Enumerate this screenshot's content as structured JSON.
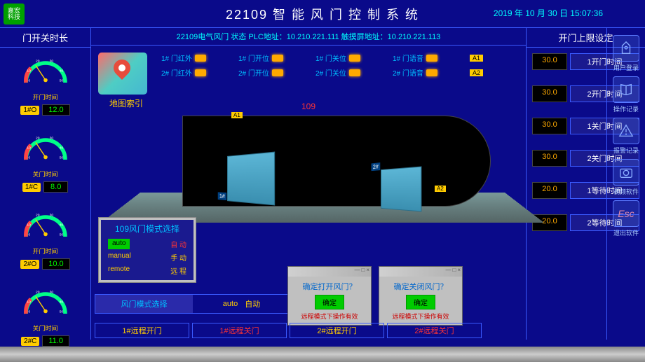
{
  "header": {
    "logo_top": "嘉宏",
    "logo_bottom": "科技",
    "title": "22109 智 能 风 门 控 制 系 统",
    "datetime": "2019 年 10 月 30 日  15:07:36"
  },
  "left": {
    "title": "门开关时长",
    "gauges": [
      {
        "label": "开门时间",
        "tag": "1#O",
        "value": "12.0"
      },
      {
        "label": "关门时间",
        "tag": "1#C",
        "value": "8.0"
      },
      {
        "label": "开门时间",
        "tag": "2#O",
        "value": "10.0"
      },
      {
        "label": "关门时间",
        "tag": "2#C",
        "value": "11.0"
      }
    ]
  },
  "center": {
    "status_line": "22109电气风门 状态   PLC地址：10.210.221.111   触摸屏地址：10.210.221.113",
    "map_label": "地图索引",
    "row1": [
      "1# 门红外",
      "1# 门开位",
      "1# 门关位",
      "1# 门语音"
    ],
    "row2": [
      "2# 门红外",
      "2# 门开位",
      "2# 门关位",
      "2# 门语音"
    ],
    "tag_a1": "A1",
    "tag_a2": "A2",
    "center_number": "109",
    "door1_tag": "1#",
    "door2_tag": "2#",
    "tunnel_a1": "A1",
    "tunnel_a2": "A2",
    "mode_dialog": {
      "title": "109风门模式选择",
      "rows": [
        {
          "en": "auto",
          "cn": "自 动",
          "active": true
        },
        {
          "en": "manual",
          "cn": "手 动",
          "active": false
        },
        {
          "en": "remote",
          "cn": "远 程",
          "active": false
        }
      ]
    },
    "mode_bar": {
      "left": "风门模式选择",
      "right_en": "auto",
      "right_cn": "自动"
    },
    "confirm1": {
      "q": "确定打开风门？",
      "btn": "确定",
      "note": "远程模式下操作有效"
    },
    "confirm2": {
      "q": "确定关闭风门？",
      "btn": "确定",
      "note": "远程模式下操作有效"
    },
    "bottom_btns": [
      "1#远程开门",
      "1#远程关门",
      "2#远程开门",
      "2#远程关门"
    ]
  },
  "right": {
    "title": "开门上限设定",
    "rows": [
      {
        "val": "30.0",
        "btn": "1开门时间"
      },
      {
        "val": "30.0",
        "btn": "2开门时间"
      },
      {
        "val": "30.0",
        "btn": "1关门时间"
      },
      {
        "val": "30.0",
        "btn": "2关门时间"
      },
      {
        "val": "20.0",
        "btn": "1等待时间"
      },
      {
        "val": "20.0",
        "btn": "2等待时间"
      }
    ]
  },
  "far_right": [
    {
      "icon": "user",
      "label": "用户登录"
    },
    {
      "icon": "book",
      "label": "操作记录"
    },
    {
      "icon": "alert",
      "label": "报警记录"
    },
    {
      "icon": "camera",
      "label": "视频软件"
    },
    {
      "icon": "esc",
      "label": "退出软件"
    }
  ],
  "colors": {
    "bg": "#0a0a8a",
    "accent": "#00bfff",
    "yellow": "#ffcc00",
    "green": "#00cc00",
    "red": "#ff3333",
    "led": "#ffaa00"
  }
}
